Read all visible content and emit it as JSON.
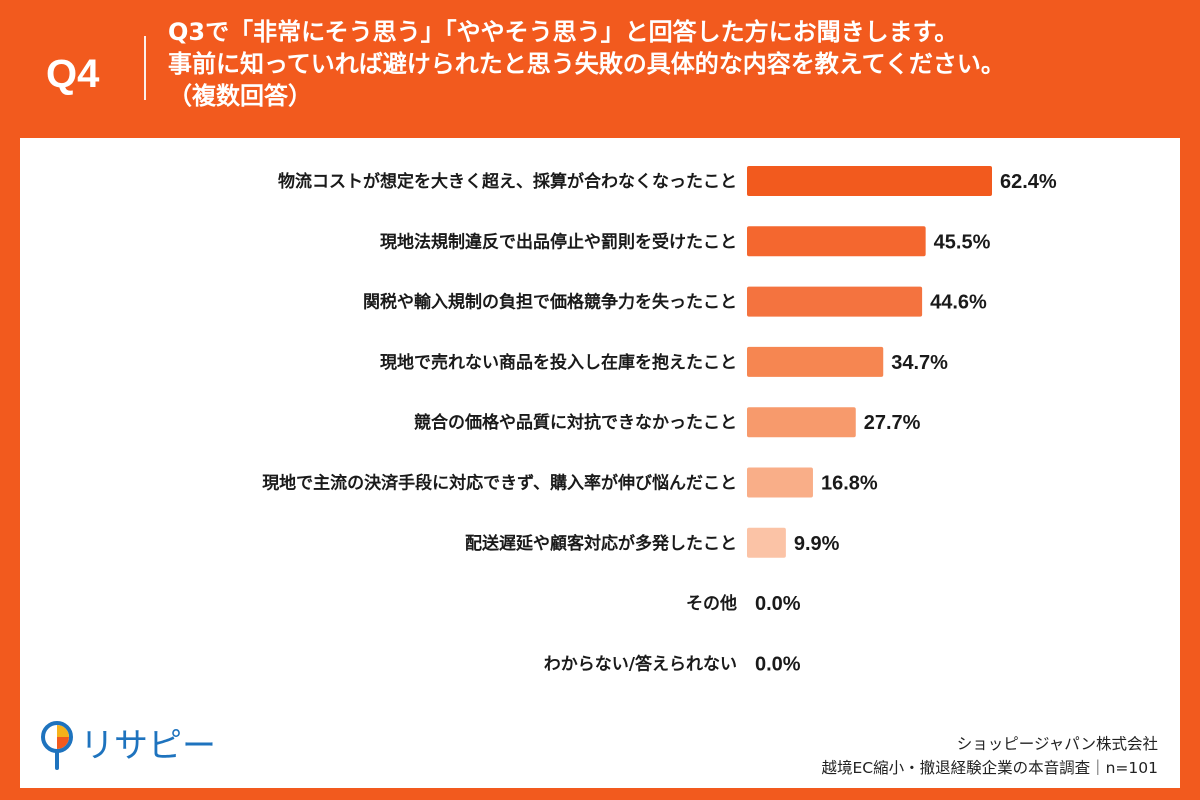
{
  "header": {
    "question_number": "Q4",
    "question_line1": "Q3で「非常にそう思う」「ややそう思う」と回答した方にお聞きします。",
    "question_line2": "事前に知っていれば避けられたと思う失敗の具体的な内容を教えてください。",
    "question_line3": "（複数回答）"
  },
  "chart_data": {
    "type": "bar",
    "orientation": "horizontal",
    "categories": [
      "物流コストが想定を大きく超え、採算が合わなくなったこと",
      "現地法規制違反で出品停止や罰則を受けたこと",
      "関税や輸入規制の負担で価格競争力を失ったこと",
      "現地で売れない商品を投入し在庫を抱えたこと",
      "競合の価格や品質に対抗できなかったこと",
      "現地で主流の決済手段に対応できず、購入率が伸び悩んだこと",
      "配送遅延や顧客対応が多発したこと",
      "その他",
      "わからない/答えられない"
    ],
    "values": [
      62.4,
      45.5,
      44.6,
      34.7,
      27.7,
      16.8,
      9.9,
      0.0,
      0.0
    ],
    "value_labels": [
      "62.4%",
      "45.5%",
      "44.6%",
      "34.7%",
      "27.7%",
      "16.8%",
      "9.9%",
      "0.0%",
      "0.0%"
    ],
    "colors": [
      "#F25A1E",
      "#F4672F",
      "#F4733F",
      "#F68651",
      "#F79A6C",
      "#F9AE88",
      "#FBC3A6",
      "#FBC3A6",
      "#FBC3A6"
    ],
    "xlim": [
      0,
      100
    ],
    "grid": false,
    "legend": "none"
  },
  "brand": {
    "logo_text": "リサピー"
  },
  "source": {
    "company": "ショッピージャパン株式会社",
    "survey": "越境EC縮小・撤退経験企業の本音調査｜n=101"
  }
}
